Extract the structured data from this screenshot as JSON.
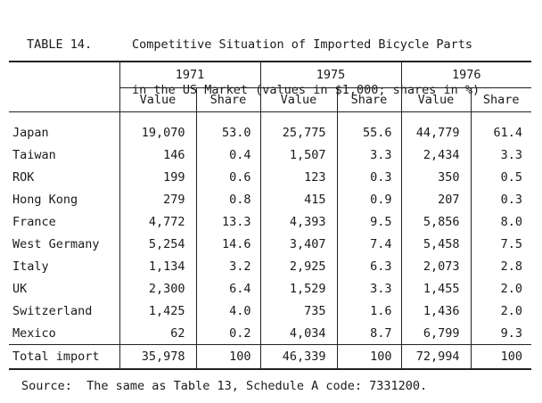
{
  "caption": {
    "label": "TABLE 14.",
    "line1": "Competitive Situation of Imported Bicycle Parts",
    "line2": "in the US Market (values in $1,000; shares in %)"
  },
  "table": {
    "years": [
      "1971",
      "1975",
      "1976"
    ],
    "subheaders": [
      "Value",
      "Share",
      "Value",
      "Share",
      "Value",
      "Share"
    ],
    "rows": [
      {
        "country": "Japan",
        "cells": [
          "19,070",
          "53.0",
          "25,775",
          "55.6",
          "44,779",
          "61.4"
        ]
      },
      {
        "country": "Taiwan",
        "cells": [
          "146",
          "0.4",
          "1,507",
          "3.3",
          "2,434",
          "3.3"
        ]
      },
      {
        "country": "ROK",
        "cells": [
          "199",
          "0.6",
          "123",
          "0.3",
          "350",
          "0.5"
        ]
      },
      {
        "country": "Hong Kong",
        "cells": [
          "279",
          "0.8",
          "415",
          "0.9",
          "207",
          "0.3"
        ]
      },
      {
        "country": "France",
        "cells": [
          "4,772",
          "13.3",
          "4,393",
          "9.5",
          "5,856",
          "8.0"
        ]
      },
      {
        "country": "West Germany",
        "cells": [
          "5,254",
          "14.6",
          "3,407",
          "7.4",
          "5,458",
          "7.5"
        ]
      },
      {
        "country": "Italy",
        "cells": [
          "1,134",
          "3.2",
          "2,925",
          "6.3",
          "2,073",
          "2.8"
        ]
      },
      {
        "country": "UK",
        "cells": [
          "2,300",
          "6.4",
          "1,529",
          "3.3",
          "1,455",
          "2.0"
        ]
      },
      {
        "country": "Switzerland",
        "cells": [
          "1,425",
          "4.0",
          "735",
          "1.6",
          "1,436",
          "2.0"
        ]
      },
      {
        "country": "Mexico",
        "cells": [
          "62",
          "0.2",
          "4,034",
          "8.7",
          "6,799",
          "9.3"
        ]
      }
    ],
    "total": {
      "country": "Total import",
      "cells": [
        "35,978",
        "100",
        "46,339",
        "100",
        "72,994",
        "100"
      ]
    }
  },
  "source": "Source:  The same as Table 13, Schedule A code: 7331200."
}
